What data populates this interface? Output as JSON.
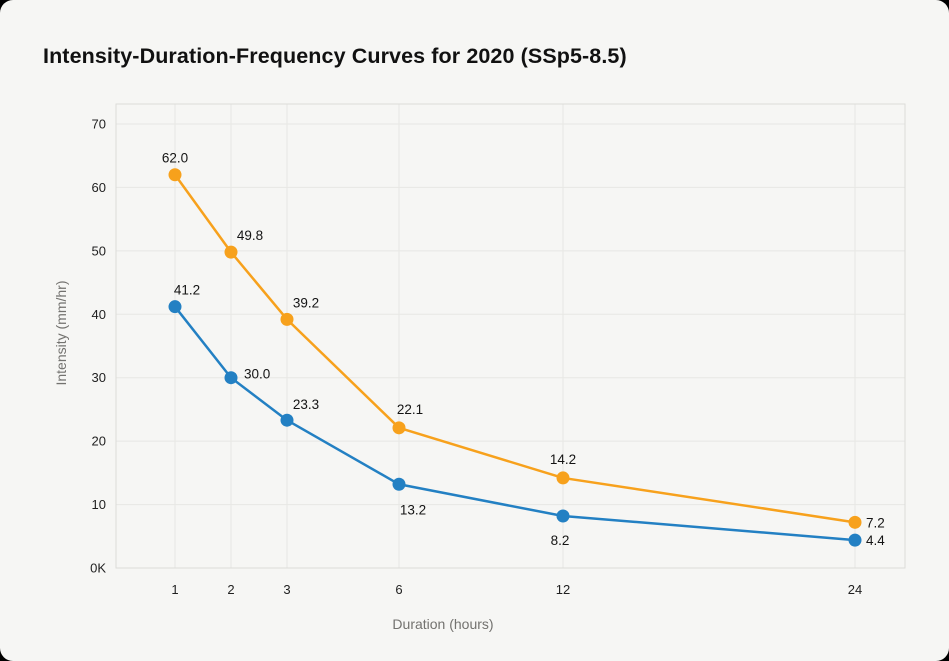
{
  "title": "Intensity-Duration-Frequency Curves for 2020 (SSp5-8.5)",
  "chart_data": {
    "type": "line",
    "x": [
      1,
      2,
      3,
      6,
      12,
      24
    ],
    "x_tick_labels": [
      "1",
      "2",
      "3",
      "6",
      "12",
      "24"
    ],
    "xlabel": "Duration (hours)",
    "ylabel": "Intensity (mm/hr)",
    "y_tick_values": [
      0,
      10,
      20,
      30,
      40,
      50,
      60,
      70
    ],
    "y_tick_labels": [
      "0K",
      "10",
      "20",
      "30",
      "40",
      "50",
      "60",
      "70"
    ],
    "ylim": [
      0,
      73.2
    ],
    "grid": true,
    "legend": "none",
    "marker": "circle",
    "series": [
      {
        "id": "upper-curve",
        "color": "#F7A11C",
        "values": [
          62.0,
          49.8,
          39.2,
          22.1,
          14.2,
          7.2
        ],
        "point_labels": [
          "62.0",
          "49.8",
          "39.2",
          "22.1",
          "14.2",
          "7.2"
        ]
      },
      {
        "id": "lower-curve",
        "color": "#2380C3",
        "values": [
          41.2,
          30.0,
          23.3,
          13.2,
          8.2,
          4.4
        ],
        "point_labels": [
          "41.2",
          "30.0",
          "23.3",
          "13.2",
          "8.2",
          "4.4"
        ]
      }
    ]
  },
  "colors": {
    "page_background": "#F6F6F4",
    "outer_background": "#000000",
    "grid_line": "#E7E7E4",
    "plot_frame": "#DCDCD9",
    "tick_text": "#1F1F1F",
    "axis_title_text": "#73726F",
    "title_text": "#111111",
    "data_label_text": "#141414"
  }
}
